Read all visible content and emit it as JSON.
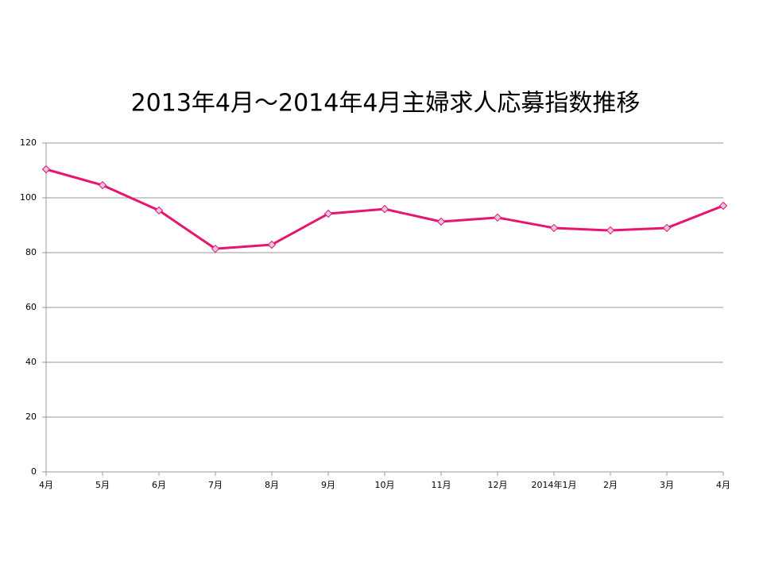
{
  "chart_data": {
    "type": "line",
    "title": "2013年4月～2014年4月主婦求人応募指数推移",
    "categories": [
      "4月",
      "5月",
      "6月",
      "7月",
      "8月",
      "9月",
      "10月",
      "11月",
      "12月",
      "2014年1月",
      "2月",
      "3月",
      "4月"
    ],
    "series": [
      {
        "color": "#e8146e",
        "values": [
          110.4,
          104.6,
          95.4,
          81.4,
          82.9,
          94.2,
          95.9,
          91.3,
          92.8,
          89.0,
          88.1,
          89.0,
          97.1
        ]
      }
    ],
    "ylim": [
      0,
      120
    ],
    "yticks": [
      0,
      20,
      40,
      60,
      80,
      100,
      120
    ],
    "grid": true
  }
}
